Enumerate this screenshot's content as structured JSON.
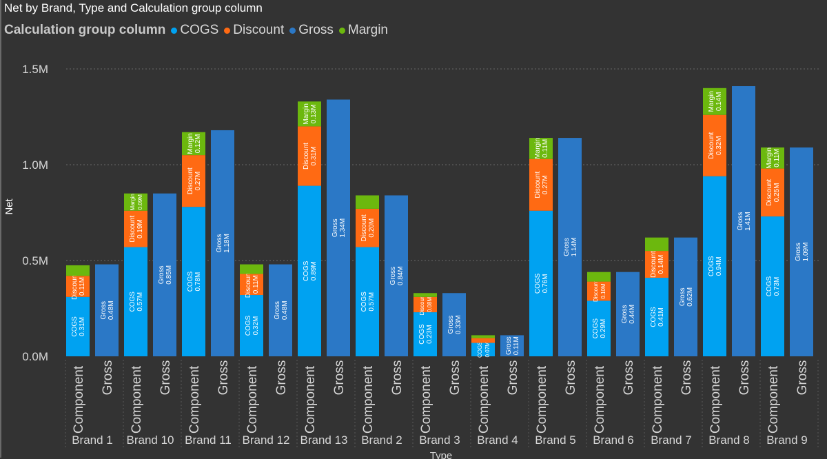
{
  "chart_data": {
    "type": "bar",
    "title": "Net by Brand, Type and Calculation group column",
    "legend_title": "Calculation group column",
    "legend": [
      {
        "name": "COGS",
        "color": "#00a2f1"
      },
      {
        "name": "Discount",
        "color": "#ff6a13"
      },
      {
        "name": "Gross",
        "color": "#2b78c6"
      },
      {
        "name": "Margin",
        "color": "#6cb80e"
      }
    ],
    "ylabel": "Net",
    "xlabel": "Type",
    "ylim": [
      0,
      1.5
    ],
    "yticks": [
      {
        "value": 0,
        "label": "0.0M"
      },
      {
        "value": 0.5,
        "label": "0.5M"
      },
      {
        "value": 1.0,
        "label": "1.0M"
      },
      {
        "value": 1.5,
        "label": "1.5M"
      }
    ],
    "groups": [
      {
        "brand": "Brand 1",
        "cogs": 0.31,
        "discount": 0.11,
        "margin": 0.055,
        "gross": 0.48,
        "labels": {
          "cogs": "0.31M",
          "discount": "0.11M",
          "margin": "",
          "gross": "0.48M"
        }
      },
      {
        "brand": "Brand 10",
        "cogs": 0.57,
        "discount": 0.19,
        "margin": 0.09,
        "gross": 0.85,
        "labels": {
          "cogs": "0.57M",
          "discount": "0.19M",
          "margin": "0.09M",
          "gross": "0.85M"
        }
      },
      {
        "brand": "Brand 11",
        "cogs": 0.78,
        "discount": 0.27,
        "margin": 0.12,
        "gross": 1.18,
        "labels": {
          "cogs": "0.78M",
          "discount": "0.27M",
          "margin": "0.12M",
          "gross": "1.18M"
        }
      },
      {
        "brand": "Brand 12",
        "cogs": 0.32,
        "discount": 0.11,
        "margin": 0.05,
        "gross": 0.48,
        "labels": {
          "cogs": "0.32M",
          "discount": "0.11M",
          "margin": "",
          "gross": "0.48M"
        }
      },
      {
        "brand": "Brand 13",
        "cogs": 0.89,
        "discount": 0.31,
        "margin": 0.13,
        "gross": 1.34,
        "labels": {
          "cogs": "0.89M",
          "discount": "0.31M",
          "margin": "0.13M",
          "gross": "1.34M"
        }
      },
      {
        "brand": "Brand 2",
        "cogs": 0.57,
        "discount": 0.2,
        "margin": 0.07,
        "gross": 0.84,
        "labels": {
          "cogs": "0.57M",
          "discount": "0.20M",
          "margin": "",
          "gross": "0.84M"
        }
      },
      {
        "brand": "Brand 3",
        "cogs": 0.23,
        "discount": 0.08,
        "margin": 0.02,
        "gross": 0.33,
        "labels": {
          "cogs": "0.23M",
          "discount": "0.08M",
          "margin": "",
          "gross": "0.33M"
        }
      },
      {
        "brand": "Brand 4",
        "cogs": 0.07,
        "discount": 0.025,
        "margin": 0.015,
        "gross": 0.11,
        "labels": {
          "cogs": "0.07M",
          "discount": "",
          "margin": "",
          "gross": "0.11M"
        }
      },
      {
        "brand": "Brand 5",
        "cogs": 0.76,
        "discount": 0.27,
        "margin": 0.11,
        "gross": 1.14,
        "labels": {
          "cogs": "0.76M",
          "discount": "0.27M",
          "margin": "0.11M",
          "gross": "1.14M"
        }
      },
      {
        "brand": "Brand 6",
        "cogs": 0.29,
        "discount": 0.1,
        "margin": 0.05,
        "gross": 0.44,
        "labels": {
          "cogs": "0.29M",
          "discount": "0.10M",
          "margin": "",
          "gross": "0.44M"
        }
      },
      {
        "brand": "Brand 7",
        "cogs": 0.41,
        "discount": 0.14,
        "margin": 0.07,
        "gross": 0.62,
        "labels": {
          "cogs": "0.41M",
          "discount": "0.14M",
          "margin": "",
          "gross": "0.62M"
        }
      },
      {
        "brand": "Brand 8",
        "cogs": 0.94,
        "discount": 0.32,
        "margin": 0.14,
        "gross": 1.41,
        "labels": {
          "cogs": "0.94M",
          "discount": "0.32M",
          "margin": "0.14M",
          "gross": "1.41M"
        }
      },
      {
        "brand": "Brand 9",
        "cogs": 0.73,
        "discount": 0.25,
        "margin": 0.11,
        "gross": 1.09,
        "labels": {
          "cogs": "0.73M",
          "discount": "0.25M",
          "margin": "0.11M",
          "gross": "1.09M"
        }
      }
    ],
    "type_labels": {
      "component": "Component",
      "gross": "Gross"
    }
  }
}
